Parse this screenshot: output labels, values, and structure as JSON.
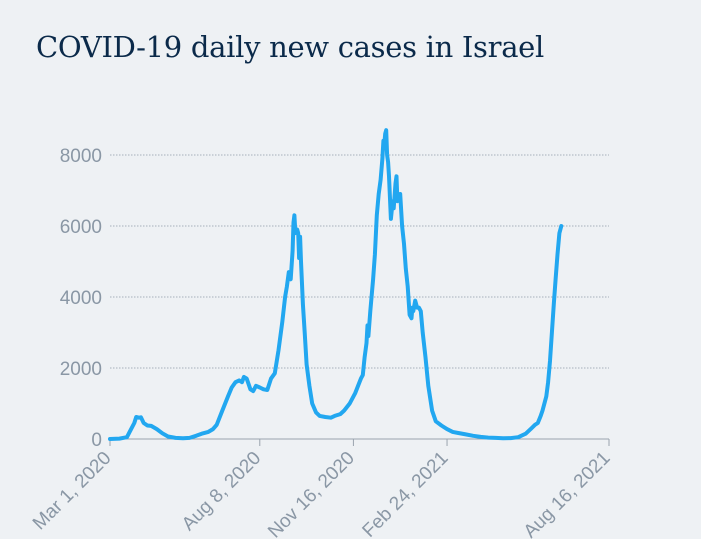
{
  "title": "COVID-19 daily new cases in Israel",
  "chart_data": {
    "type": "line",
    "title": "COVID-19 daily new cases in Israel",
    "xlabel": "",
    "ylabel": "",
    "ylim": [
      0,
      8000
    ],
    "yticks": [
      0,
      2000,
      4000,
      6000,
      8000
    ],
    "ytick_labels": [
      "0",
      "2000",
      "4000",
      "6000",
      "8000"
    ],
    "xlim_days": [
      0,
      533
    ],
    "xticks": [
      {
        "day": 0,
        "label": "Mar 1, 2020"
      },
      {
        "day": 160,
        "label": "Aug 8, 2020"
      },
      {
        "day": 260,
        "label": "Nov 16, 2020"
      },
      {
        "day": 360,
        "label": "Feb 24, 2021"
      },
      {
        "day": 533,
        "label": "Aug 16, 2021"
      }
    ],
    "grid": true,
    "line_color": "#22a7f0",
    "series": [
      {
        "name": "Daily new cases",
        "points": [
          [
            0,
            0
          ],
          [
            10,
            10
          ],
          [
            18,
            50
          ],
          [
            22,
            250
          ],
          [
            26,
            450
          ],
          [
            28,
            620
          ],
          [
            31,
            600
          ],
          [
            33,
            610
          ],
          [
            36,
            450
          ],
          [
            40,
            380
          ],
          [
            44,
            370
          ],
          [
            50,
            280
          ],
          [
            56,
            160
          ],
          [
            62,
            70
          ],
          [
            70,
            30
          ],
          [
            78,
            20
          ],
          [
            85,
            30
          ],
          [
            92,
            90
          ],
          [
            98,
            150
          ],
          [
            105,
            200
          ],
          [
            110,
            280
          ],
          [
            114,
            400
          ],
          [
            120,
            800
          ],
          [
            126,
            1200
          ],
          [
            130,
            1450
          ],
          [
            134,
            1600
          ],
          [
            138,
            1650
          ],
          [
            141,
            1600
          ],
          [
            143,
            1750
          ],
          [
            146,
            1700
          ],
          [
            150,
            1400
          ],
          [
            153,
            1350
          ],
          [
            156,
            1500
          ],
          [
            160,
            1450
          ],
          [
            164,
            1400
          ],
          [
            168,
            1380
          ],
          [
            172,
            1700
          ],
          [
            176,
            1850
          ],
          [
            180,
            2500
          ],
          [
            184,
            3300
          ],
          [
            187,
            4000
          ],
          [
            189,
            4300
          ],
          [
            191,
            4700
          ],
          [
            193,
            4500
          ],
          [
            195,
            5300
          ],
          [
            196,
            6100
          ],
          [
            197,
            6300
          ],
          [
            198,
            5800
          ],
          [
            200,
            5900
          ],
          [
            201,
            5800
          ],
          [
            202,
            5100
          ],
          [
            203,
            5700
          ],
          [
            204,
            5000
          ],
          [
            206,
            3800
          ],
          [
            208,
            3000
          ],
          [
            210,
            2100
          ],
          [
            213,
            1500
          ],
          [
            216,
            1000
          ],
          [
            220,
            750
          ],
          [
            224,
            650
          ],
          [
            230,
            620
          ],
          [
            236,
            600
          ],
          [
            240,
            650
          ],
          [
            246,
            700
          ],
          [
            250,
            800
          ],
          [
            256,
            1000
          ],
          [
            262,
            1300
          ],
          [
            268,
            1700
          ],
          [
            270,
            1800
          ],
          [
            272,
            2300
          ],
          [
            274,
            2700
          ],
          [
            275,
            3200
          ],
          [
            276,
            2900
          ],
          [
            278,
            3600
          ],
          [
            281,
            4500
          ],
          [
            283,
            5200
          ],
          [
            285,
            6300
          ],
          [
            287,
            6900
          ],
          [
            289,
            7300
          ],
          [
            291,
            7900
          ],
          [
            292,
            8400
          ],
          [
            293,
            8300
          ],
          [
            294,
            8600
          ],
          [
            295,
            8700
          ],
          [
            296,
            8000
          ],
          [
            297,
            7800
          ],
          [
            298,
            7400
          ],
          [
            300,
            6200
          ],
          [
            302,
            6700
          ],
          [
            303,
            6500
          ],
          [
            305,
            7200
          ],
          [
            306,
            7400
          ],
          [
            307,
            6700
          ],
          [
            309,
            6800
          ],
          [
            310,
            6900
          ],
          [
            312,
            6000
          ],
          [
            314,
            5500
          ],
          [
            316,
            4800
          ],
          [
            318,
            4300
          ],
          [
            320,
            3500
          ],
          [
            322,
            3400
          ],
          [
            323,
            3700
          ],
          [
            324,
            3600
          ],
          [
            326,
            3900
          ],
          [
            328,
            3700
          ],
          [
            330,
            3700
          ],
          [
            332,
            3600
          ],
          [
            334,
            3000
          ],
          [
            337,
            2300
          ],
          [
            340,
            1500
          ],
          [
            344,
            800
          ],
          [
            348,
            500
          ],
          [
            354,
            380
          ],
          [
            360,
            280
          ],
          [
            366,
            200
          ],
          [
            372,
            170
          ],
          [
            380,
            130
          ],
          [
            388,
            90
          ],
          [
            396,
            60
          ],
          [
            404,
            40
          ],
          [
            412,
            30
          ],
          [
            420,
            20
          ],
          [
            428,
            25
          ],
          [
            436,
            50
          ],
          [
            444,
            150
          ],
          [
            450,
            300
          ],
          [
            454,
            400
          ],
          [
            457,
            450
          ],
          [
            460,
            650
          ],
          [
            462,
            800
          ],
          [
            464,
            1000
          ],
          [
            466,
            1200
          ],
          [
            468,
            1600
          ],
          [
            470,
            2200
          ],
          [
            472,
            3000
          ],
          [
            474,
            3800
          ],
          [
            476,
            4500
          ],
          [
            478,
            5200
          ],
          [
            480,
            5800
          ],
          [
            482,
            6000
          ]
        ]
      }
    ]
  }
}
